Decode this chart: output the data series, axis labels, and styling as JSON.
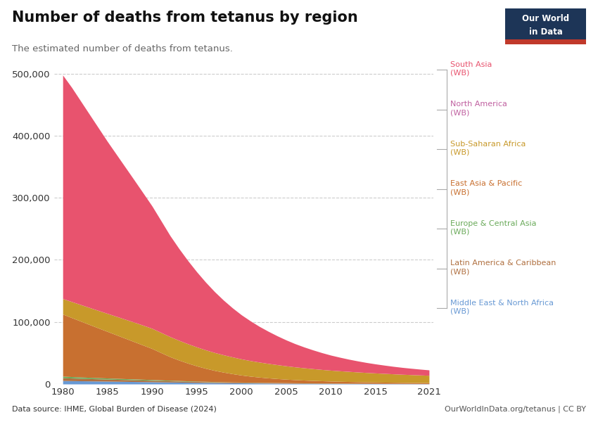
{
  "title": "Number of deaths from tetanus by region",
  "subtitle": "The estimated number of deaths from tetanus.",
  "datasource": "Data source: IHME, Global Burden of Disease (2024)",
  "credit": "OurWorldInData.org/tetanus | CC BY",
  "years": [
    1980,
    1981,
    1982,
    1983,
    1984,
    1985,
    1986,
    1987,
    1988,
    1989,
    1990,
    1991,
    1992,
    1993,
    1994,
    1995,
    1996,
    1997,
    1998,
    1999,
    2000,
    2001,
    2002,
    2003,
    2004,
    2005,
    2006,
    2007,
    2008,
    2009,
    2010,
    2011,
    2012,
    2013,
    2014,
    2015,
    2016,
    2017,
    2018,
    2019,
    2020,
    2021
  ],
  "regions": [
    {
      "name": "Middle East & North Africa (WB)",
      "color": "#6899d4",
      "data": [
        5500,
        5300,
        5100,
        4900,
        4700,
        4500,
        4300,
        4100,
        3900,
        3700,
        3500,
        3300,
        3100,
        2900,
        2700,
        2500,
        2300,
        2100,
        1950,
        1800,
        1650,
        1550,
        1450,
        1350,
        1250,
        1150,
        1050,
        980,
        910,
        850,
        790,
        740,
        690,
        640,
        600,
        560,
        520,
        490,
        460,
        430,
        400,
        375
      ]
    },
    {
      "name": "Latin America & Caribbean (WB)",
      "color": "#b07040",
      "data": [
        4500,
        4200,
        3950,
        3700,
        3500,
        3300,
        3100,
        2900,
        2700,
        2500,
        2300,
        2100,
        1950,
        1800,
        1650,
        1500,
        1380,
        1260,
        1150,
        1050,
        950,
        880,
        820,
        760,
        700,
        650,
        600,
        555,
        510,
        470,
        430,
        400,
        370,
        345,
        320,
        295,
        273,
        252,
        233,
        215,
        198,
        183
      ]
    },
    {
      "name": "Europe & Central Asia (WB)",
      "color": "#6aaa5a",
      "data": [
        2500,
        2350,
        2200,
        2050,
        1900,
        1780,
        1660,
        1540,
        1430,
        1330,
        1230,
        1050,
        900,
        780,
        680,
        590,
        510,
        445,
        395,
        350,
        310,
        280,
        255,
        232,
        210,
        192,
        175,
        160,
        147,
        135,
        124,
        115,
        107,
        100,
        93,
        87,
        81,
        76,
        71,
        66,
        62,
        58
      ]
    },
    {
      "name": "East Asia & Pacific (WB)",
      "color": "#c87030",
      "data": [
        100000,
        95000,
        90000,
        85000,
        80000,
        75000,
        70000,
        65000,
        60000,
        55000,
        50000,
        44000,
        38000,
        33000,
        28500,
        24500,
        21000,
        18000,
        15500,
        13300,
        11400,
        9800,
        8500,
        7400,
        6500,
        5700,
        5050,
        4500,
        4050,
        3650,
        3300,
        3000,
        2750,
        2520,
        2320,
        2140,
        1980,
        1840,
        1710,
        1600,
        1500,
        1410
      ]
    },
    {
      "name": "Sub-Saharan Africa (WB)",
      "color": "#c8992a",
      "data": [
        25000,
        25800,
        26600,
        27400,
        28200,
        29000,
        29800,
        30600,
        31400,
        32000,
        32500,
        32500,
        32300,
        31800,
        31200,
        30500,
        29700,
        28800,
        27900,
        27000,
        26000,
        25100,
        24200,
        23300,
        22400,
        21500,
        20600,
        19800,
        19000,
        18200,
        17500,
        16900,
        16300,
        15700,
        15100,
        14600,
        14100,
        13600,
        13100,
        12700,
        12300,
        11900
      ]
    },
    {
      "name": "North America (WB)",
      "color": "#c060a0",
      "data": [
        90,
        86,
        82,
        79,
        76,
        73,
        70,
        67,
        65,
        62,
        60,
        57,
        55,
        52,
        50,
        48,
        46,
        44,
        42,
        40,
        38,
        36,
        35,
        33,
        31,
        30,
        29,
        27,
        26,
        25,
        24,
        23,
        22,
        21,
        20,
        19,
        18,
        17,
        16,
        16,
        15,
        14
      ]
    },
    {
      "name": "South Asia (WB)",
      "color": "#e8536e",
      "data": [
        360000,
        345000,
        328000,
        311000,
        294000,
        277000,
        261000,
        245000,
        229000,
        213000,
        197000,
        180000,
        163000,
        148000,
        134000,
        121000,
        109000,
        98000,
        88000,
        79000,
        71000,
        64000,
        57500,
        51800,
        46500,
        41700,
        37400,
        33600,
        30200,
        27100,
        24300,
        21900,
        19700,
        17800,
        16100,
        14600,
        13300,
        12100,
        11100,
        10200,
        9400,
        8700
      ]
    }
  ],
  "ylim": [
    0,
    520000
  ],
  "yticks": [
    0,
    100000,
    200000,
    300000,
    400000,
    500000
  ],
  "ytick_labels": [
    "0",
    "100,000",
    "200,000",
    "300,000",
    "400,000",
    "500,000"
  ],
  "bg_color": "#ffffff",
  "grid_color": "#cccccc",
  "owid_box_bg": "#1d3557",
  "owid_box_red": "#c0392b",
  "legend_order": [
    6,
    5,
    4,
    3,
    2,
    1,
    0
  ]
}
